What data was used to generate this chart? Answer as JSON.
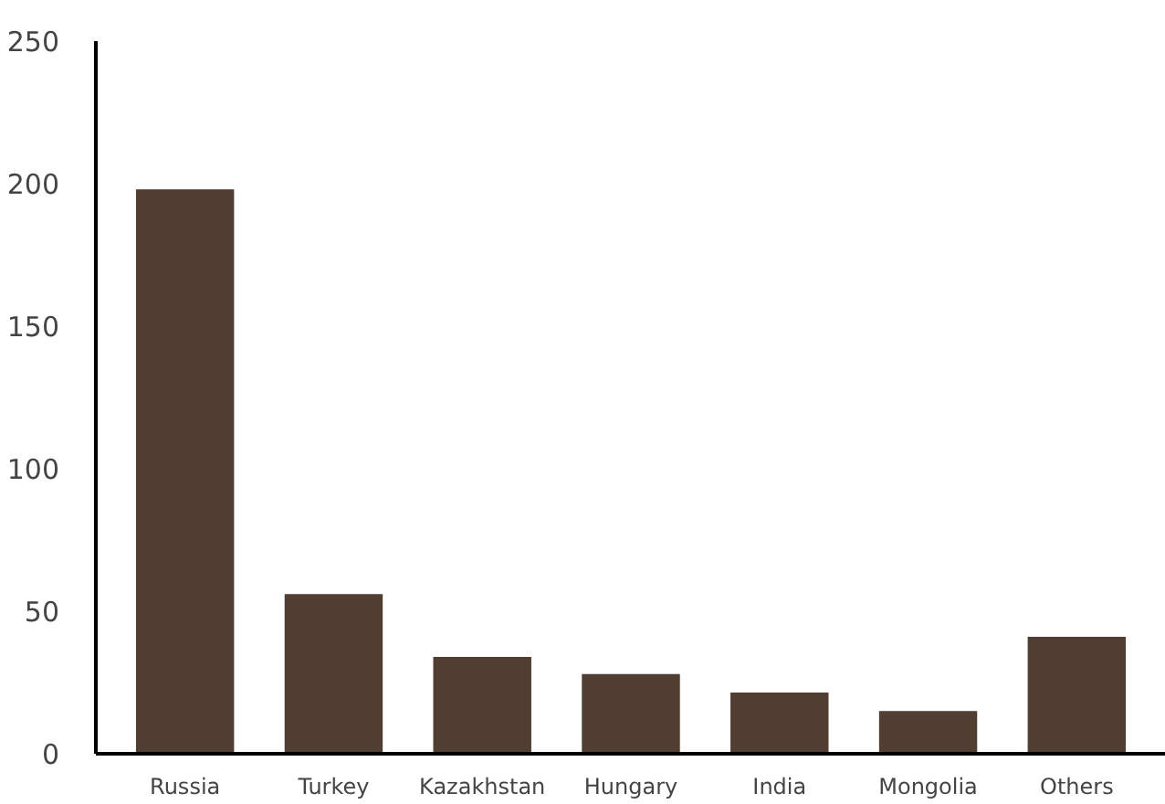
{
  "chart_data": {
    "type": "bar",
    "categories": [
      "Russia",
      "Turkey",
      "Kazakhstan",
      "Hungary",
      "India",
      "Mongolia",
      "Others"
    ],
    "values": [
      198,
      56,
      34,
      28,
      21.5,
      15,
      41
    ],
    "color": "#4f3e31",
    "ylim": [
      0,
      250
    ],
    "yticks": [
      0,
      50,
      100,
      150,
      200,
      250
    ],
    "grid": false
  }
}
